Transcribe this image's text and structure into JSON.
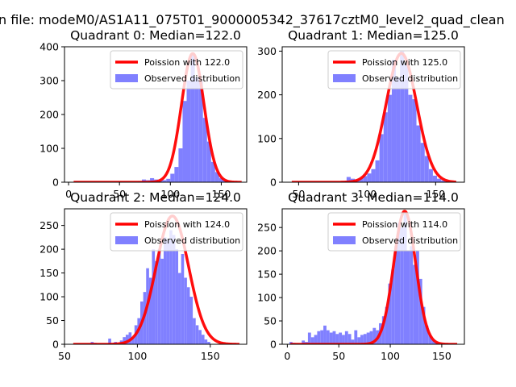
{
  "figure": {
    "suptitle": "n file: modeM0/AS1A11_075T01_9000005342_37617cztM0_level2_quad_clean"
  },
  "chart_data": [
    {
      "type": "bar",
      "title": "Quadrant 0: Median=122.0",
      "xlim": [
        -4,
        175
      ],
      "ylim": [
        0,
        400
      ],
      "xticks": [
        0,
        50,
        100,
        150
      ],
      "xtick_labels": [
        "0",
        "50",
        "100",
        "150"
      ],
      "yticks": [
        0,
        100,
        200,
        300,
        400
      ],
      "ytick_labels": [
        "0",
        "100",
        "200",
        "300",
        "400"
      ],
      "legend": {
        "position": "top-right",
        "entries": [
          "Poission with 122.0",
          "Observed distribution"
        ]
      },
      "series": [
        {
          "name": "Observed distribution",
          "kind": "histogram",
          "color": "#8080ff",
          "bins": [
            [
              68,
              72,
              3
            ],
            [
              72,
              76,
              8
            ],
            [
              76,
              80,
              6
            ],
            [
              80,
              84,
              12
            ],
            [
              84,
              88,
              8
            ],
            [
              88,
              92,
              5
            ],
            [
              92,
              96,
              6
            ],
            [
              96,
              100,
              10
            ],
            [
              100,
              104,
              25
            ],
            [
              104,
              108,
              45
            ],
            [
              108,
              112,
              100
            ],
            [
              112,
              116,
              240
            ],
            [
              116,
              120,
              300
            ],
            [
              120,
              124,
              380
            ],
            [
              124,
              128,
              310
            ],
            [
              128,
              132,
              300
            ],
            [
              132,
              136,
              190
            ],
            [
              136,
              140,
              120
            ],
            [
              140,
              144,
              60
            ],
            [
              144,
              148,
              30
            ],
            [
              148,
              152,
              12
            ],
            [
              152,
              156,
              6
            ],
            [
              156,
              160,
              3
            ]
          ]
        },
        {
          "name": "Poission with 122.0",
          "kind": "poisson_curve",
          "color": "#ff0000",
          "mean": 122,
          "peak": 380,
          "x_range": [
            5,
            170
          ]
        }
      ]
    },
    {
      "type": "bar",
      "title": "Quadrant 1: Median=125.0",
      "xlim": [
        38,
        171
      ],
      "ylim": [
        0,
        310
      ],
      "xticks": [
        50,
        100,
        150
      ],
      "xtick_labels": [
        "50",
        "100",
        "150"
      ],
      "yticks": [
        0,
        100,
        200,
        300
      ],
      "ytick_labels": [
        "0",
        "100",
        "200",
        "300"
      ],
      "legend": {
        "position": "top-right",
        "entries": [
          "Poission with 125.0",
          "Observed distribution"
        ]
      },
      "series": [
        {
          "name": "Observed distribution",
          "kind": "histogram",
          "color": "#8080ff",
          "bins": [
            [
              82,
              85,
              3
            ],
            [
              85,
              88,
              12
            ],
            [
              88,
              91,
              8
            ],
            [
              91,
              94,
              6
            ],
            [
              94,
              97,
              9
            ],
            [
              97,
              100,
              14
            ],
            [
              100,
              103,
              20
            ],
            [
              103,
              106,
              30
            ],
            [
              106,
              109,
              50
            ],
            [
              109,
              112,
              110
            ],
            [
              112,
              115,
              160
            ],
            [
              115,
              118,
              200
            ],
            [
              118,
              121,
              280
            ],
            [
              121,
              124,
              240
            ],
            [
              124,
              127,
              300
            ],
            [
              127,
              130,
              270
            ],
            [
              130,
              133,
              200
            ],
            [
              133,
              136,
              190
            ],
            [
              136,
              139,
              130
            ],
            [
              139,
              142,
              90
            ],
            [
              142,
              145,
              60
            ],
            [
              145,
              148,
              30
            ],
            [
              148,
              151,
              15
            ],
            [
              151,
              154,
              8
            ],
            [
              154,
              157,
              4
            ],
            [
              157,
              160,
              2
            ]
          ]
        },
        {
          "name": "Poission with 125.0",
          "kind": "poisson_curve",
          "color": "#ff0000",
          "mean": 125,
          "peak": 295,
          "x_range": [
            45,
            165
          ]
        }
      ]
    },
    {
      "type": "bar",
      "title": "Quadrant 2: Median=124.0",
      "xlim": [
        50,
        175
      ],
      "ylim": [
        0,
        285
      ],
      "xticks": [
        50,
        100,
        150
      ],
      "xtick_labels": [
        "50",
        "100",
        "150"
      ],
      "yticks": [
        0,
        50,
        100,
        150,
        200,
        250
      ],
      "ytick_labels": [
        "0",
        "50",
        "100",
        "150",
        "200",
        "250"
      ],
      "legend": {
        "position": "top-right",
        "entries": [
          "Poission with 124.0",
          "Observed distribution"
        ]
      },
      "series": [
        {
          "name": "Observed distribution",
          "kind": "histogram",
          "color": "#8080ff",
          "bins": [
            [
              68,
              70,
              5
            ],
            [
              70,
              72,
              3
            ],
            [
              80,
              82,
              12
            ],
            [
              84,
              86,
              5
            ],
            [
              88,
              90,
              8
            ],
            [
              90,
              92,
              15
            ],
            [
              92,
              94,
              20
            ],
            [
              94,
              96,
              25
            ],
            [
              96,
              98,
              15
            ],
            [
              98,
              100,
              40
            ],
            [
              100,
              102,
              55
            ],
            [
              102,
              104,
              90
            ],
            [
              104,
              106,
              110
            ],
            [
              106,
              108,
              160
            ],
            [
              108,
              110,
              140
            ],
            [
              110,
              112,
              200
            ],
            [
              112,
              114,
              175
            ],
            [
              114,
              116,
              200
            ],
            [
              116,
              118,
              180
            ],
            [
              118,
              120,
              225
            ],
            [
              120,
              122,
              220
            ],
            [
              122,
              124,
              240
            ],
            [
              124,
              126,
              230
            ],
            [
              126,
              128,
              200
            ],
            [
              128,
              130,
              150
            ],
            [
              130,
              132,
              190
            ],
            [
              132,
              134,
              140
            ],
            [
              134,
              136,
              120
            ],
            [
              136,
              138,
              100
            ],
            [
              138,
              140,
              55
            ],
            [
              140,
              142,
              40
            ],
            [
              142,
              144,
              30
            ],
            [
              144,
              146,
              20
            ],
            [
              146,
              148,
              10
            ],
            [
              148,
              150,
              5
            ]
          ]
        },
        {
          "name": "Poission with 124.0",
          "kind": "poisson_curve",
          "color": "#ff0000",
          "mean": 124,
          "peak": 270,
          "x_range": [
            56,
            170
          ]
        }
      ]
    },
    {
      "type": "bar",
      "title": "Quadrant 3: Median=114.0",
      "xlim": [
        -5,
        172
      ],
      "ylim": [
        0,
        290
      ],
      "xticks": [
        0,
        50,
        100,
        150
      ],
      "xtick_labels": [
        "0",
        "50",
        "100",
        "150"
      ],
      "yticks": [
        0,
        50,
        100,
        150,
        200,
        250
      ],
      "ytick_labels": [
        "0",
        "50",
        "100",
        "150",
        "200",
        "250"
      ],
      "legend": {
        "position": "top-right",
        "entries": [
          "Poission with 114.0",
          "Observed distribution"
        ]
      },
      "series": [
        {
          "name": "Observed distribution",
          "kind": "histogram",
          "color": "#8080ff",
          "bins": [
            [
              2,
              5,
              5
            ],
            [
              5,
              8,
              3
            ],
            [
              8,
              11,
              2
            ],
            [
              14,
              17,
              8
            ],
            [
              17,
              20,
              5
            ],
            [
              20,
              23,
              25
            ],
            [
              23,
              26,
              15
            ],
            [
              26,
              29,
              20
            ],
            [
              29,
              32,
              28
            ],
            [
              32,
              35,
              30
            ],
            [
              35,
              38,
              40
            ],
            [
              38,
              41,
              30
            ],
            [
              41,
              44,
              25
            ],
            [
              44,
              47,
              28
            ],
            [
              47,
              50,
              22
            ],
            [
              50,
              53,
              25
            ],
            [
              53,
              56,
              20
            ],
            [
              56,
              59,
              28
            ],
            [
              59,
              62,
              22
            ],
            [
              62,
              65,
              10
            ],
            [
              65,
              68,
              30
            ],
            [
              68,
              71,
              15
            ],
            [
              71,
              74,
              20
            ],
            [
              74,
              77,
              22
            ],
            [
              77,
              80,
              25
            ],
            [
              80,
              83,
              28
            ],
            [
              83,
              86,
              35
            ],
            [
              86,
              89,
              30
            ],
            [
              89,
              92,
              45
            ],
            [
              92,
              95,
              60
            ],
            [
              95,
              98,
              80
            ],
            [
              98,
              101,
              130
            ],
            [
              101,
              104,
              160
            ],
            [
              104,
              107,
              210
            ],
            [
              107,
              110,
              260
            ],
            [
              110,
              113,
              250
            ],
            [
              113,
              116,
              280
            ],
            [
              116,
              119,
              200
            ],
            [
              119,
              122,
              210
            ],
            [
              122,
              125,
              170
            ],
            [
              125,
              128,
              200
            ],
            [
              128,
              131,
              140
            ],
            [
              131,
              134,
              80
            ],
            [
              134,
              137,
              40
            ],
            [
              137,
              140,
              20
            ],
            [
              140,
              143,
              10
            ],
            [
              143,
              146,
              5
            ],
            [
              146,
              149,
              2
            ]
          ]
        },
        {
          "name": "Poission with 114.0",
          "kind": "poisson_curve",
          "color": "#ff0000",
          "mean": 114,
          "peak": 285,
          "x_range": [
            3,
            165
          ]
        }
      ]
    }
  ]
}
